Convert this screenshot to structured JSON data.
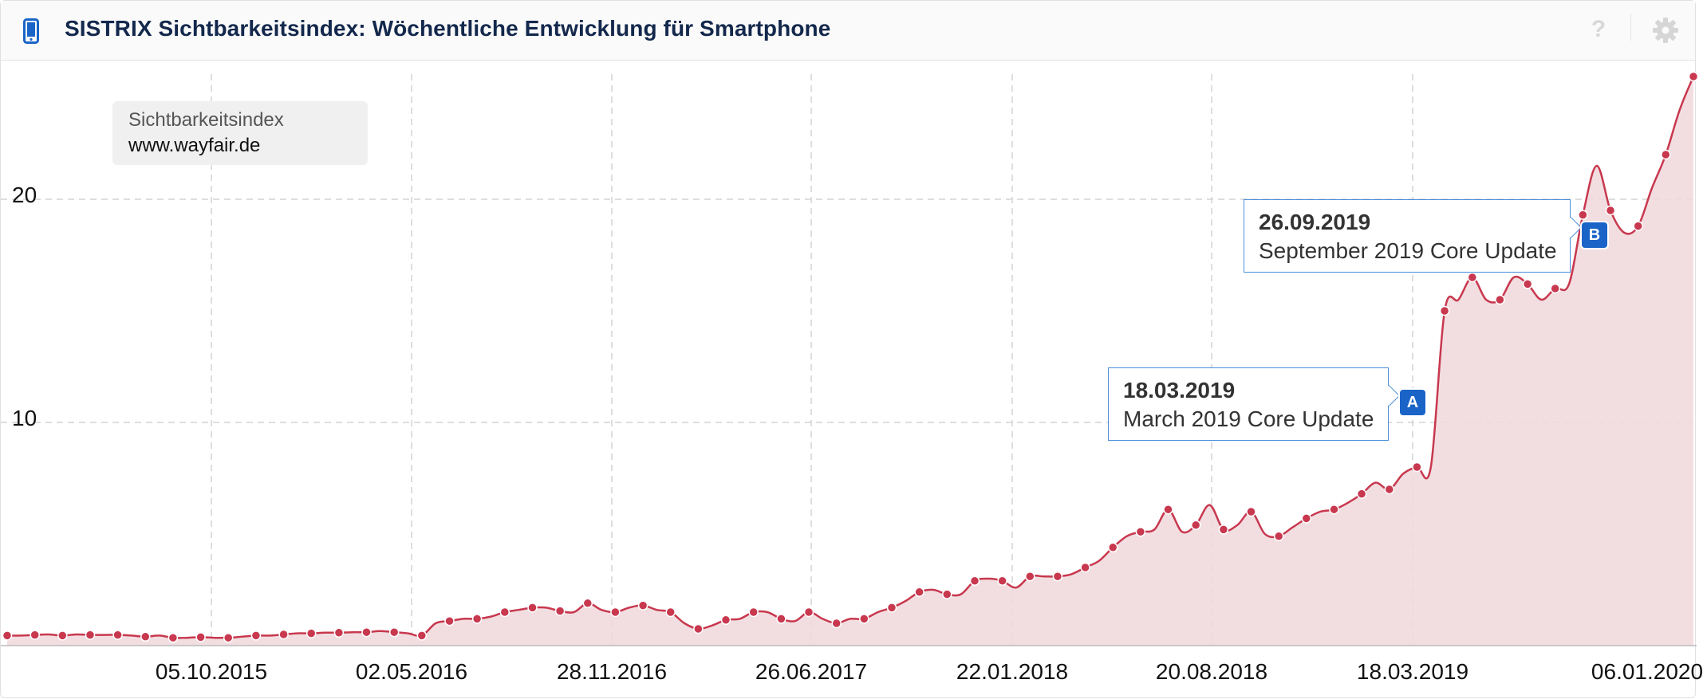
{
  "header": {
    "title": "SISTRIX Sichtbarkeitsindex: Wöchentliche Entwicklung für Smartphone",
    "icons": [
      "smartphone-icon",
      "help-icon",
      "gear-icon"
    ],
    "help_glyph": "?"
  },
  "colors": {
    "line": "#c8384e",
    "area": "#f0d8dc",
    "title": "#13284c",
    "callout_border": "#4a8fdb",
    "flag": "#1a64c8"
  },
  "legend": {
    "label": "Sichtbarkeitsindex",
    "domain": "www.wayfair.de"
  },
  "annotations": [
    {
      "flag": "A",
      "date": "18.03.2019",
      "text": "March 2019 Core Update"
    },
    {
      "flag": "B",
      "date": "26.09.2019",
      "text": "September 2019 Core Update"
    }
  ],
  "chart_data": {
    "type": "area",
    "title": "SISTRIX Sichtbarkeitsindex: Wöchentliche Entwicklung für Smartphone",
    "series": [
      {
        "name": "www.wayfair.de",
        "values": [
          0.45,
          0.45,
          0.48,
          0.5,
          0.45,
          0.5,
          0.48,
          0.48,
          0.48,
          0.45,
          0.4,
          0.45,
          0.35,
          0.35,
          0.38,
          0.35,
          0.35,
          0.4,
          0.45,
          0.45,
          0.5,
          0.55,
          0.55,
          0.58,
          0.58,
          0.6,
          0.6,
          0.65,
          0.6,
          0.55,
          0.45,
          1.0,
          1.1,
          1.2,
          1.2,
          1.3,
          1.5,
          1.6,
          1.7,
          1.7,
          1.55,
          1.5,
          1.9,
          1.6,
          1.5,
          1.7,
          1.8,
          1.6,
          1.5,
          1.0,
          0.75,
          0.9,
          1.15,
          1.2,
          1.5,
          1.5,
          1.2,
          1.1,
          1.5,
          1.2,
          1.0,
          1.2,
          1.2,
          1.5,
          1.7,
          2.0,
          2.4,
          2.5,
          2.3,
          2.3,
          2.9,
          3.0,
          2.9,
          2.6,
          3.1,
          3.1,
          3.1,
          3.2,
          3.5,
          3.8,
          4.4,
          4.9,
          5.1,
          5.2,
          6.1,
          5.1,
          5.4,
          6.3,
          5.2,
          5.4,
          6.0,
          5.0,
          4.9,
          5.3,
          5.7,
          6.0,
          6.1,
          6.4,
          6.8,
          7.3,
          7.0,
          7.7,
          8.0,
          8.0,
          15.0,
          15.5,
          16.5,
          15.5,
          15.5,
          16.5,
          16.2,
          15.5,
          16.0,
          16.2,
          19.3,
          21.5,
          19.5,
          18.5,
          18.8,
          20.5,
          22.0,
          24.0,
          25.5
        ]
      }
    ],
    "x_start": "2015-03-30",
    "x_interval_days": 14,
    "xtick_labels": [
      "05.10.2015",
      "02.05.2016",
      "28.11.2016",
      "26.06.2017",
      "22.01.2018",
      "20.08.2018",
      "18.03.2019",
      "06.01.2020"
    ],
    "yticks": [
      10,
      20
    ],
    "ylim": [
      0,
      26
    ],
    "grid": true,
    "legend_position": "top-left",
    "markers": [
      {
        "label": "A",
        "date": "2019-03-18",
        "text": "March 2019 Core Update"
      },
      {
        "label": "B",
        "date": "2019-09-26",
        "text": "September 2019 Core Update"
      }
    ]
  }
}
